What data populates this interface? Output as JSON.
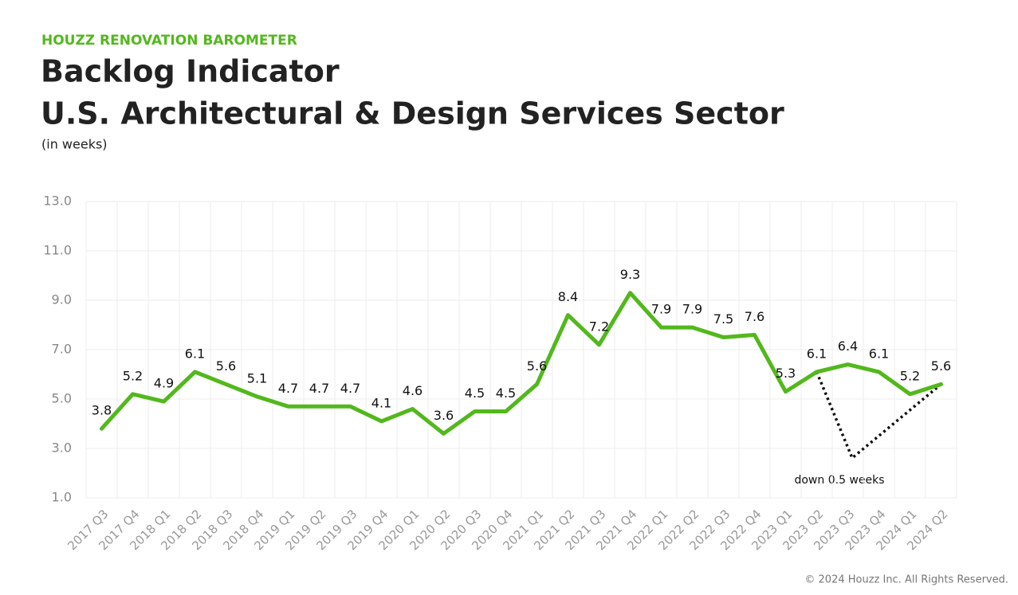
{
  "chart_data": {
    "type": "line",
    "supertitle": "HOUZZ RENOVATION BAROMETER",
    "title": [
      "Backlog Indicator",
      "U.S. Architectural & Design Services Sector"
    ],
    "subtitle": "(in weeks)",
    "categories": [
      "2017 Q3",
      "2017 Q4",
      "2018 Q1",
      "2018 Q2",
      "2018 Q3",
      "2018 Q4",
      "2019 Q1",
      "2019 Q2",
      "2019 Q3",
      "2019 Q4",
      "2020 Q1",
      "2020 Q2",
      "2020 Q3",
      "2020 Q4",
      "2021 Q1",
      "2021 Q2",
      "2021 Q3",
      "2021 Q4",
      "2022 Q1",
      "2022 Q2",
      "2022 Q3",
      "2022 Q4",
      "2023 Q1",
      "2023 Q2",
      "2023 Q3",
      "2023 Q4",
      "2024 Q1",
      "2024 Q2"
    ],
    "values": [
      3.8,
      5.2,
      4.9,
      6.1,
      5.6,
      5.1,
      4.7,
      4.7,
      4.7,
      4.1,
      4.6,
      3.6,
      4.5,
      4.5,
      5.6,
      8.4,
      7.2,
      9.3,
      7.9,
      7.9,
      7.5,
      7.6,
      5.3,
      6.1,
      6.4,
      6.1,
      5.2,
      5.6
    ],
    "color": "#52b81c",
    "ylim": [
      1,
      13
    ],
    "yticks": [
      {
        "value": 1,
        "label": "1.0"
      },
      {
        "value": 3,
        "label": "3.0"
      },
      {
        "value": 5,
        "label": "5.0"
      },
      {
        "value": 7,
        "label": "7.0"
      },
      {
        "value": 9,
        "label": "9.0"
      },
      {
        "value": 11,
        "label": "11.0"
      },
      {
        "value": 13,
        "label": "13.0"
      }
    ],
    "grid": true,
    "annotation": "down 0.5 weeks"
  },
  "footer": "© 2024 Houzz Inc. All Rights Reserved."
}
